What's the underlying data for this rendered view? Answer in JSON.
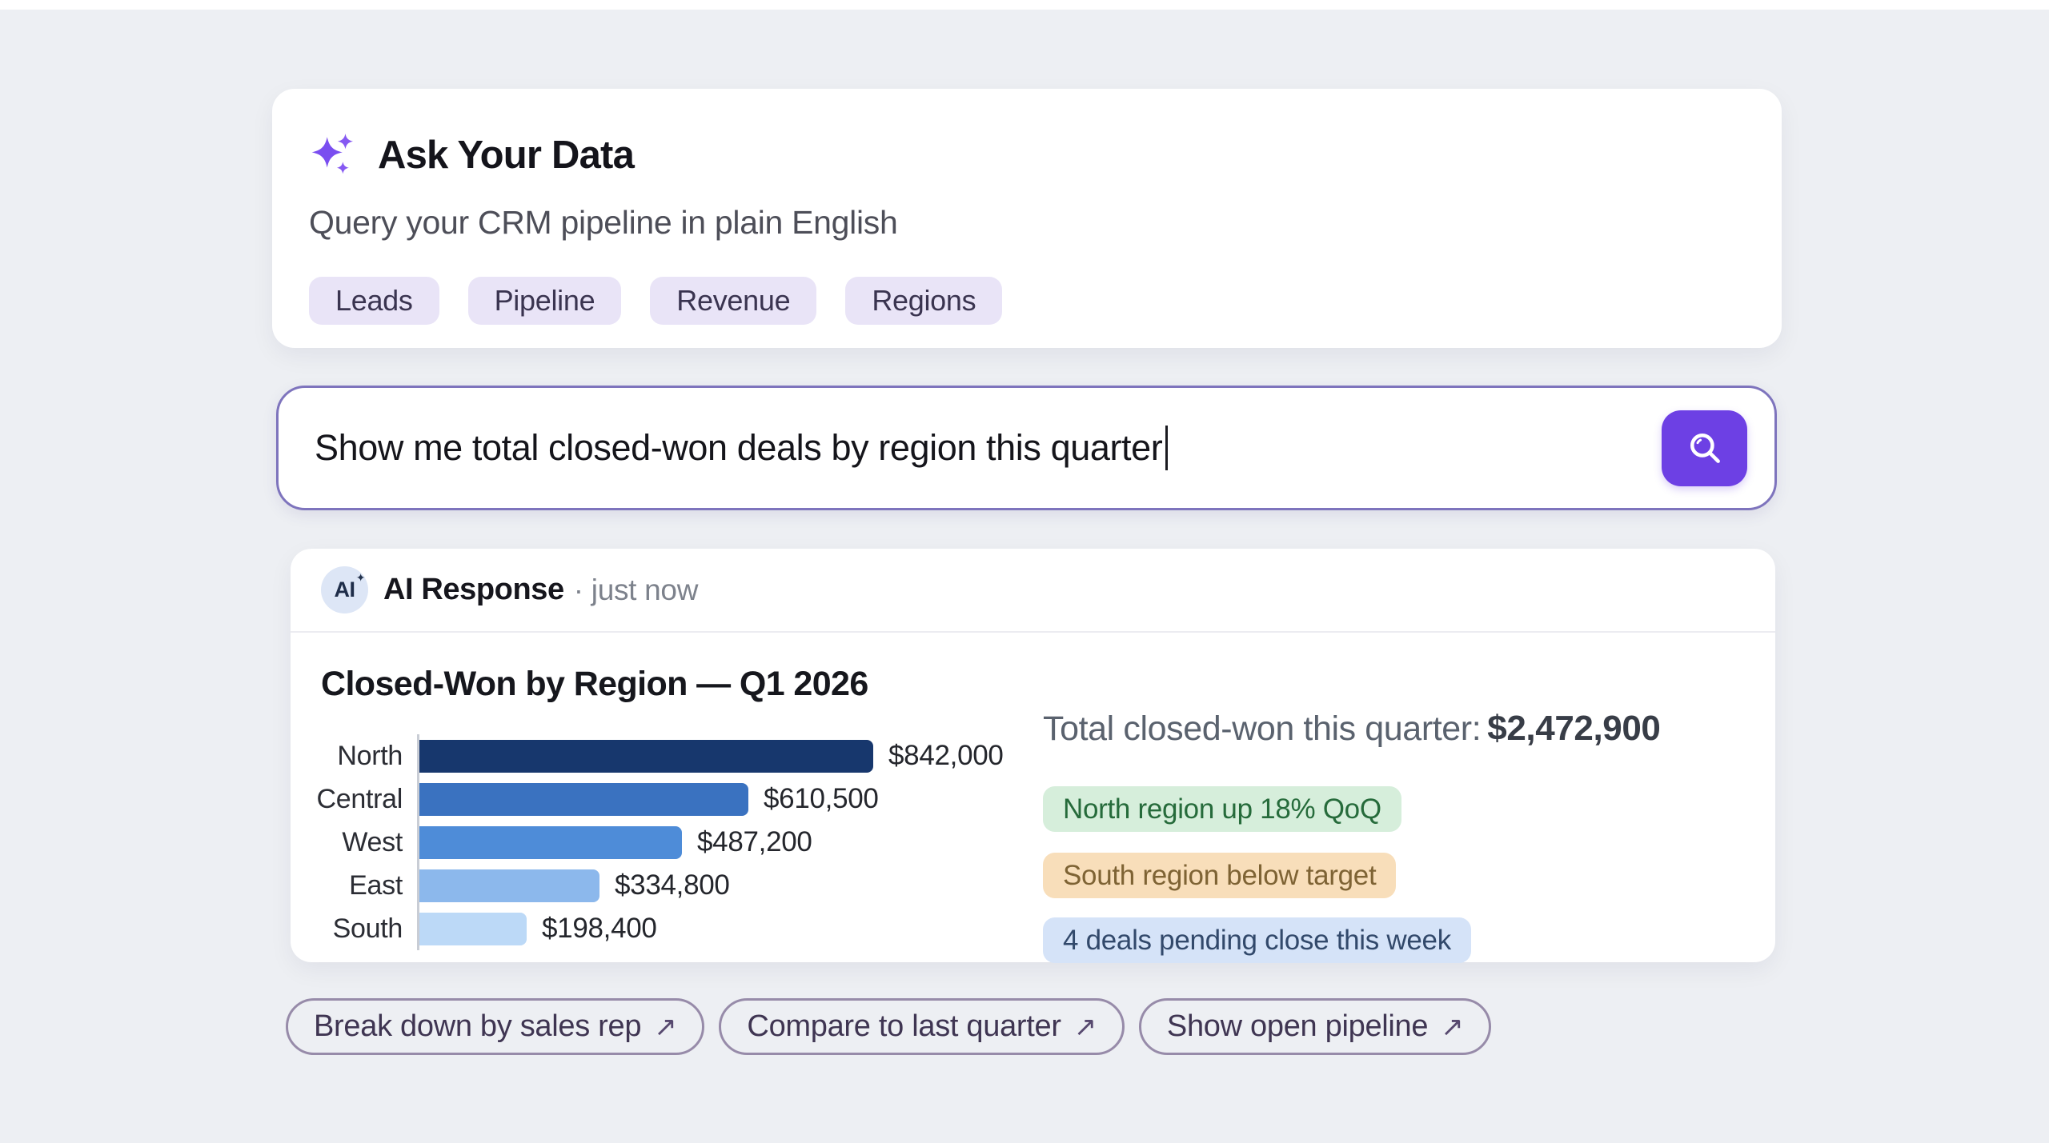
{
  "header": {
    "title": "Ask Your Data",
    "subtitle": "Query your CRM pipeline in plain English",
    "chips": [
      "Leads",
      "Pipeline",
      "Revenue",
      "Regions"
    ]
  },
  "search": {
    "value": "Show me total closed-won deals by region this quarter",
    "button_icon": "magnifier"
  },
  "response": {
    "source": "AI Response",
    "timestamp": "· just now",
    "avatar_text": "AI",
    "summary": {
      "label": "Total closed-won this quarter:",
      "value": "$2,472,900"
    },
    "insights": [
      {
        "text": "North region up 18% QoQ",
        "type": "positive"
      },
      {
        "text": "South region below target",
        "type": "warning"
      },
      {
        "text": "4 deals pending close this week",
        "type": "info"
      }
    ],
    "actions": [
      {
        "label": "Break down by sales rep",
        "icon": "↗"
      },
      {
        "label": "Compare to last quarter",
        "icon": "↗"
      },
      {
        "label": "Show open pipeline",
        "icon": "↗"
      }
    ]
  },
  "chart_data": {
    "type": "bar",
    "orientation": "horizontal",
    "title": "Closed-Won by Region — Q1 2026",
    "categories": [
      "North",
      "Central",
      "West",
      "East",
      "South"
    ],
    "values": [
      842000,
      610500,
      487200,
      334800,
      198400
    ],
    "value_labels": [
      "$842,000",
      "$610,500",
      "$487,200",
      "$334,800",
      "$198,400"
    ],
    "bar_colors": [
      "#17376d",
      "#3a72c0",
      "#4e8cd8",
      "#8cb8ec",
      "#bcd9f7"
    ],
    "xlim": [
      0,
      842000
    ],
    "grid": false,
    "legend": false,
    "total": 2472900
  },
  "colors": {
    "accent_purple": "#6d40e4",
    "chip_bg": "#e9e4f7",
    "positive_bg": "#d6eedb",
    "positive_text": "#266b3b",
    "warning_bg": "#f8deba",
    "warning_text": "#7e6334",
    "info_bg": "#d5e3f8",
    "info_text": "#32496b",
    "page_bg": "#edeff3"
  }
}
